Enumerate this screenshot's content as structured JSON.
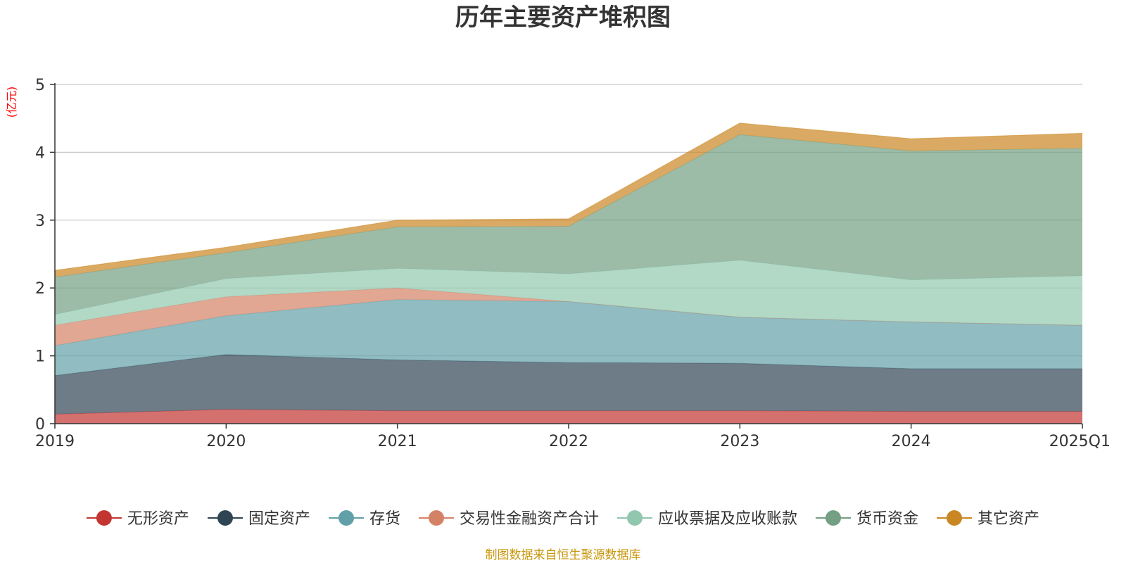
{
  "chart_data": {
    "type": "area",
    "stacked": true,
    "title": "历年主要资产堆积图",
    "unit_label": "(亿元)",
    "categories": [
      "2019",
      "2020",
      "2021",
      "2022",
      "2023",
      "2024",
      "2025Q1"
    ],
    "ylim": [
      0,
      5
    ],
    "yticks": [
      "0",
      "1",
      "2",
      "3",
      "4",
      "5"
    ],
    "grid": true,
    "legend_position": "bottom",
    "series": [
      {
        "name": "无形资产",
        "color": "#c23531",
        "values": [
          0.14,
          0.21,
          0.19,
          0.19,
          0.19,
          0.18,
          0.18
        ]
      },
      {
        "name": "固定资产",
        "color": "#2f4554",
        "values": [
          0.57,
          0.81,
          0.75,
          0.71,
          0.7,
          0.63,
          0.63
        ]
      },
      {
        "name": "存货",
        "color": "#61a0a8",
        "values": [
          0.44,
          0.57,
          0.89,
          0.9,
          0.68,
          0.69,
          0.64
        ]
      },
      {
        "name": "交易性金融资产合计",
        "color": "#d48265",
        "values": [
          0.3,
          0.28,
          0.17,
          0.0,
          0.0,
          0.0,
          0.0
        ]
      },
      {
        "name": "应收票据及应收账款",
        "color": "#91c7ae",
        "values": [
          0.16,
          0.27,
          0.29,
          0.41,
          0.84,
          0.62,
          0.73
        ]
      },
      {
        "name": "货币资金",
        "color": "#749f83",
        "values": [
          0.55,
          0.38,
          0.61,
          0.7,
          1.85,
          1.9,
          1.88
        ]
      },
      {
        "name": "其它资产",
        "color": "#ca8622",
        "values": [
          0.1,
          0.08,
          0.1,
          0.11,
          0.17,
          0.18,
          0.22
        ]
      }
    ],
    "source_note": "制图数据来自恒生聚源数据库",
    "source_color": "#c8960a"
  }
}
